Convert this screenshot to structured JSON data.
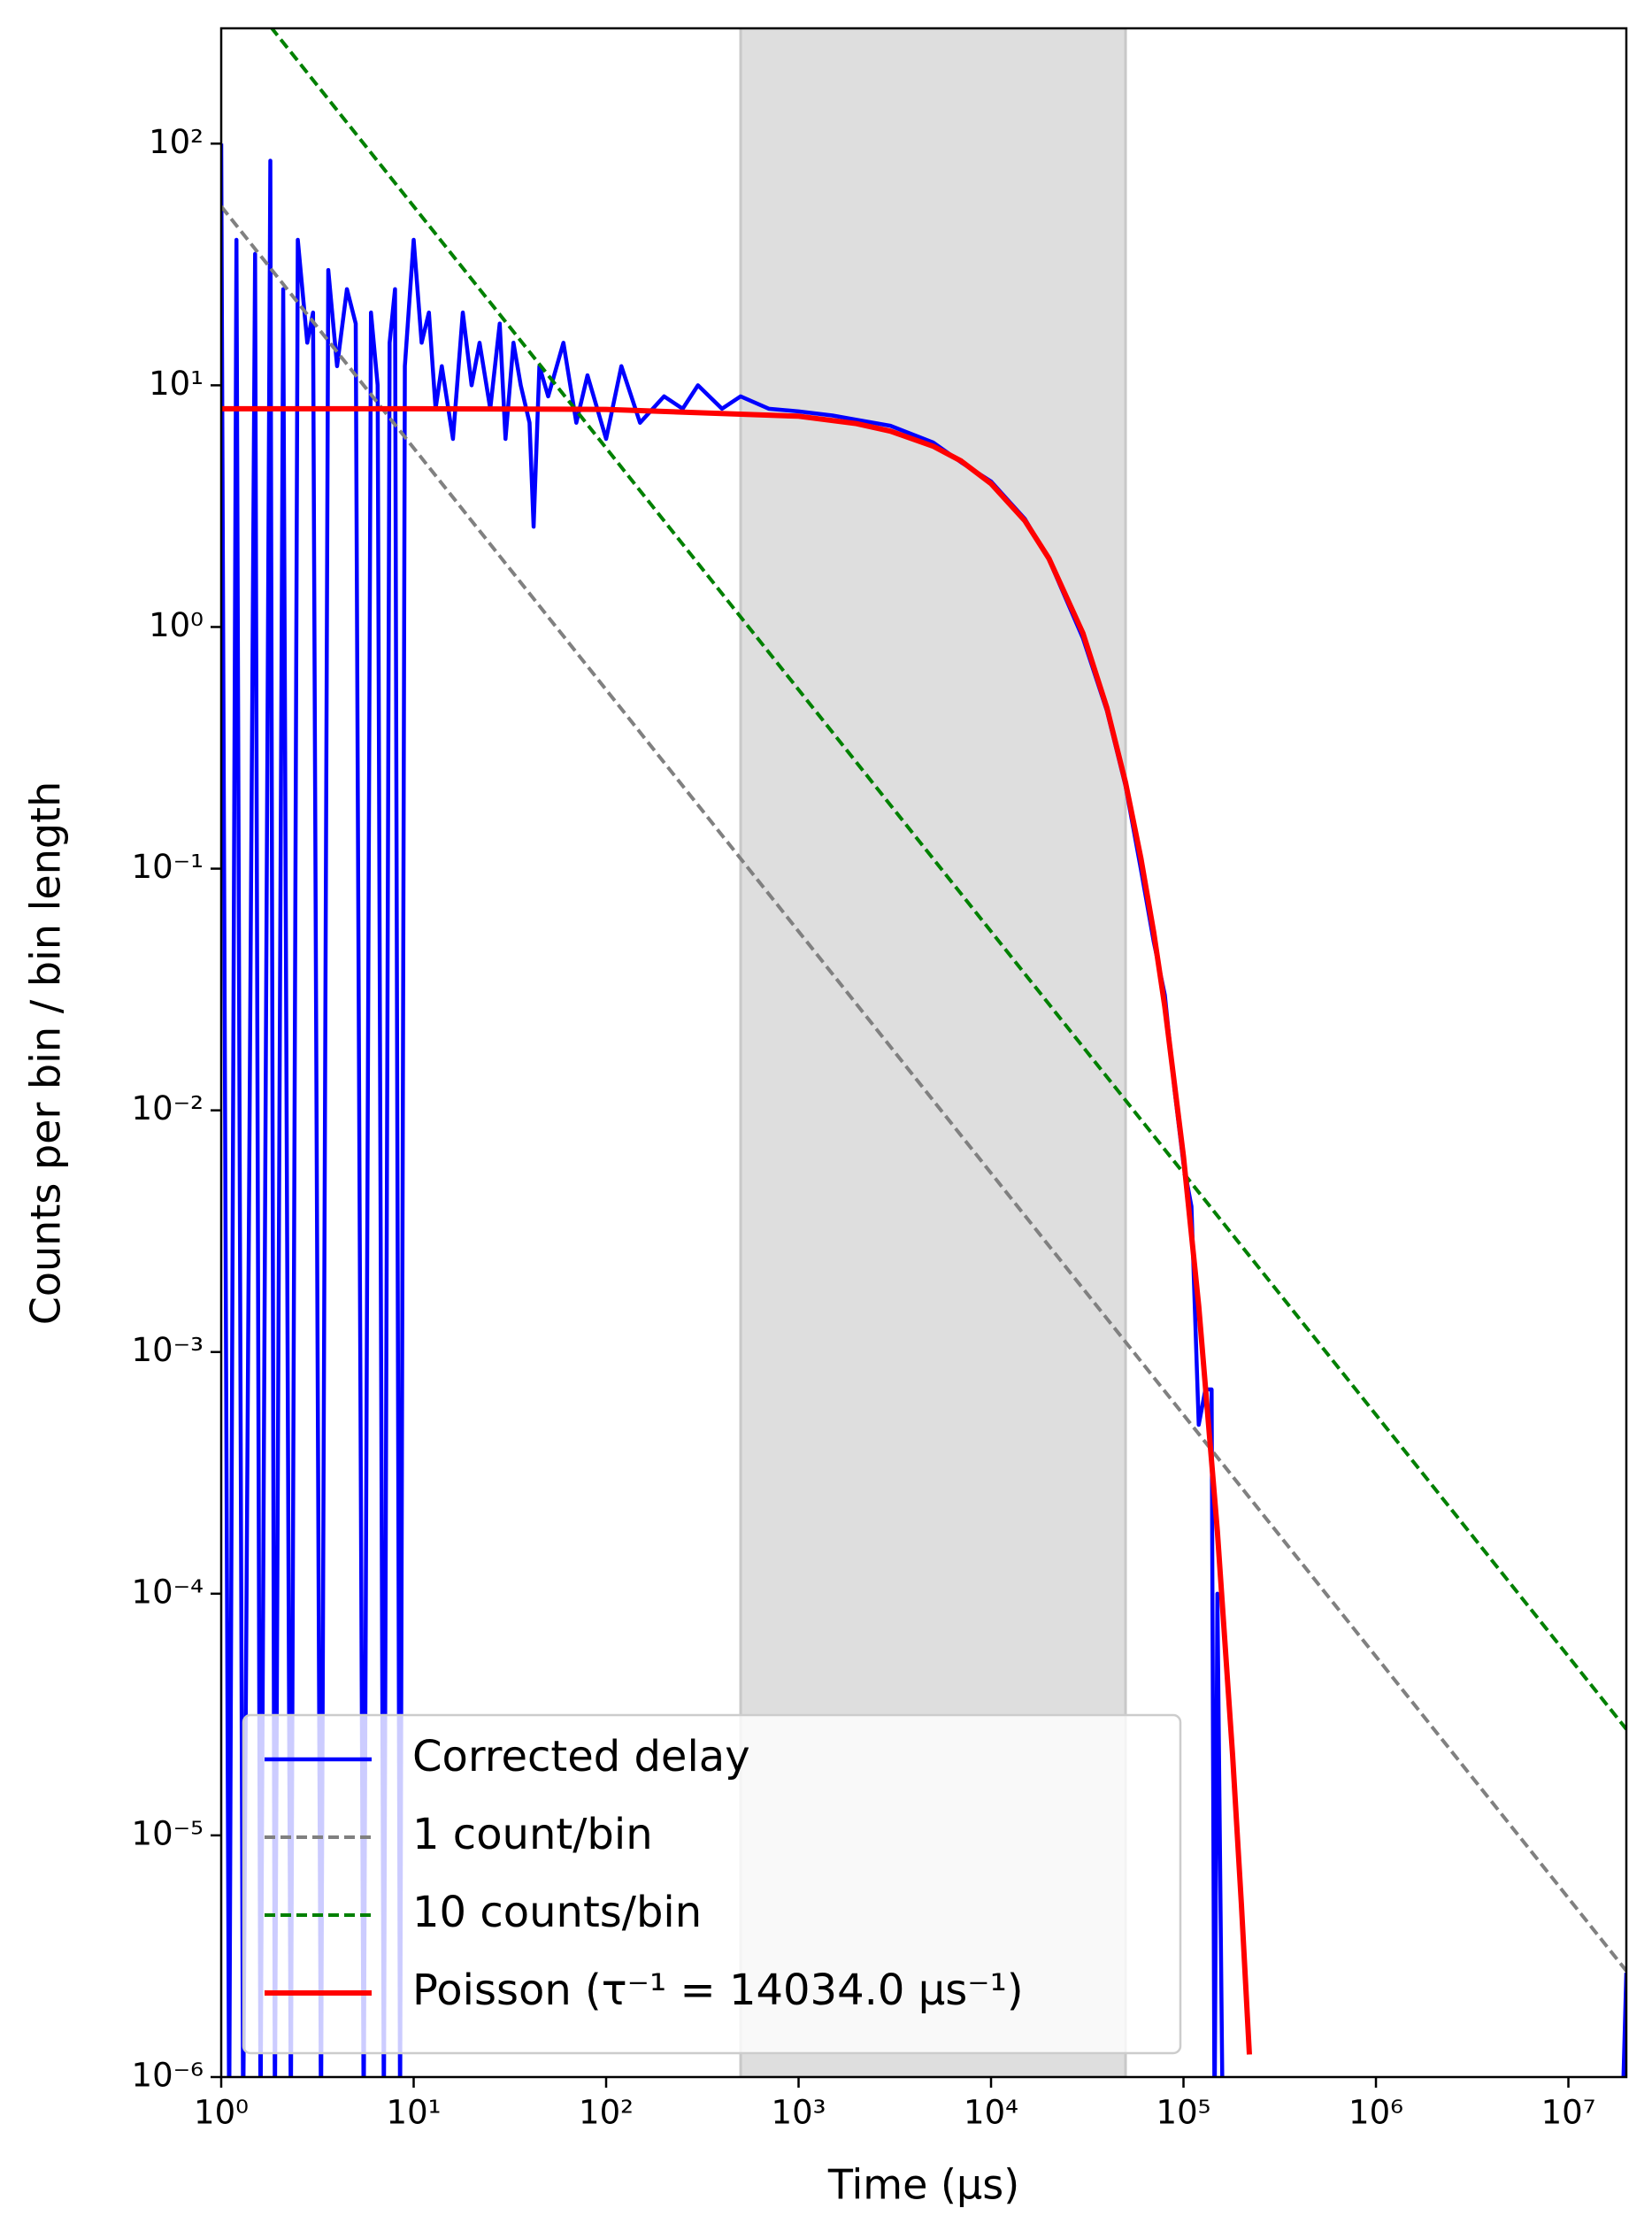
{
  "chart_data": {
    "type": "line",
    "xlabel": "Time (μs)",
    "ylabel": "Counts per bin / bin length",
    "xscale": "log",
    "yscale": "log",
    "xlim": [
      1,
      20000000
    ],
    "ylim": [
      1e-06,
      300
    ],
    "xticks": [
      {
        "value": 1,
        "label": "10⁰"
      },
      {
        "value": 10,
        "label": "10¹"
      },
      {
        "value": 100,
        "label": "10²"
      },
      {
        "value": 1000,
        "label": "10³"
      },
      {
        "value": 10000,
        "label": "10⁴"
      },
      {
        "value": 100000,
        "label": "10⁵"
      },
      {
        "value": 1000000,
        "label": "10⁶"
      },
      {
        "value": 10000000,
        "label": "10⁷"
      }
    ],
    "yticks": [
      {
        "value": 1e-06,
        "label": "10⁻⁶"
      },
      {
        "value": 1e-05,
        "label": "10⁻⁵"
      },
      {
        "value": 0.0001,
        "label": "10⁻⁴"
      },
      {
        "value": 0.001,
        "label": "10⁻³"
      },
      {
        "value": 0.01,
        "label": "10⁻²"
      },
      {
        "value": 0.1,
        "label": "10⁻¹"
      },
      {
        "value": 1,
        "label": "10⁰"
      },
      {
        "value": 10,
        "label": "10¹"
      },
      {
        "value": 100,
        "label": "10²"
      }
    ],
    "shaded_region": {
      "x": [
        500,
        50000
      ],
      "color": "#dedede"
    },
    "legend": "lower left",
    "series": [
      {
        "name": "Corrected delay",
        "color": "#0000ff",
        "dash": false,
        "x": [
          1,
          1.1,
          1.2,
          1.3,
          1.5,
          1.6,
          1.8,
          1.9,
          2.1,
          2.3,
          2.5,
          2.8,
          3,
          3.3,
          3.6,
          4,
          4.5,
          5,
          5.5,
          6,
          6.5,
          7,
          7.5,
          8,
          8.5,
          9,
          10,
          11,
          12,
          13,
          14,
          16,
          18,
          20,
          22,
          25,
          28,
          30,
          33,
          36,
          40,
          42,
          45,
          50,
          60,
          70,
          80,
          100,
          120,
          150,
          200,
          250,
          300,
          400,
          500,
          700,
          1000,
          1500,
          2000,
          3000,
          5000,
          7000,
          10000,
          15000,
          20000,
          30000,
          40000,
          50000,
          60000,
          70000,
          80000,
          90000,
          100000,
          110000,
          120000,
          130000,
          140000,
          145000,
          150000,
          160000,
          19000000,
          20000000
        ],
        "values": [
          100,
          0,
          40,
          0,
          35,
          0,
          85,
          0,
          25,
          0,
          40,
          15,
          20,
          0,
          30,
          12,
          25,
          18,
          0,
          20,
          10,
          0,
          15,
          25,
          0,
          12,
          40,
          15,
          20,
          8,
          12,
          6,
          20,
          10,
          15,
          8,
          18,
          6,
          15,
          10,
          7,
          2.6,
          12,
          9,
          15,
          7,
          11,
          6,
          12,
          7,
          9,
          8,
          10,
          8,
          9,
          8,
          7.8,
          7.5,
          7.2,
          6.8,
          5.8,
          4.8,
          4.0,
          2.8,
          1.9,
          0.9,
          0.45,
          0.22,
          0.1,
          0.05,
          0.03,
          0.012,
          0.006,
          0.004,
          0.0005,
          0.0007,
          0.0007,
          0,
          0.0001,
          0,
          0,
          2.7e-06
        ]
      },
      {
        "name": "1 count/bin",
        "color": "#808080",
        "dash": true,
        "x": [
          1,
          20000000
        ],
        "values": [
          55,
          2.75e-06
        ]
      },
      {
        "name": "10 counts/bin",
        "color": "#008000",
        "dash": true,
        "x": [
          1,
          20000000
        ],
        "values": [
          550,
          2.75e-05
        ]
      },
      {
        "name": "Poisson (τ⁻¹ = 14034.0 μs⁻¹)",
        "color": "#ff0000",
        "dash": false,
        "x": [
          1,
          10,
          100,
          1000,
          2000,
          3000,
          5000,
          7000,
          10000,
          15000,
          20000,
          30000,
          40000,
          50000,
          60000,
          70000,
          80000,
          100000,
          120000,
          150000,
          180000,
          200000,
          220000
        ],
        "values": [
          8,
          8,
          7.95,
          7.45,
          6.94,
          6.46,
          5.6,
          4.86,
          3.92,
          2.75,
          1.92,
          0.944,
          0.463,
          0.227,
          0.111,
          0.0546,
          0.0268,
          0.00643,
          0.00155,
          0.000181,
          2.14e-05,
          5.16e-06,
          1.24e-06
        ]
      }
    ]
  }
}
